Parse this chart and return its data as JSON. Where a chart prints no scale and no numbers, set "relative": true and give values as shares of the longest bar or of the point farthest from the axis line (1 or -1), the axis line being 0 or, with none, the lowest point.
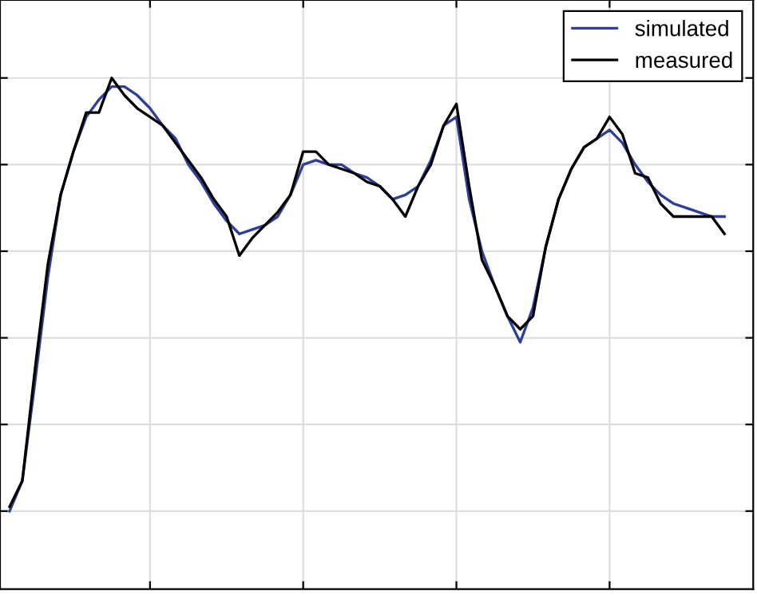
{
  "chart_data": {
    "type": "line",
    "relative": true,
    "grid": true,
    "legend": "top right",
    "marker": "none",
    "line_style": "solid",
    "categories": [
      null,
      null,
      null,
      null,
      null,
      null,
      null,
      null,
      null,
      null,
      null,
      null,
      null,
      null,
      null,
      null,
      null,
      null,
      null,
      null,
      null,
      null,
      null,
      null,
      null,
      null,
      null,
      null,
      null,
      null,
      null,
      null,
      null,
      null,
      null,
      null,
      null,
      null,
      null,
      null,
      null,
      null,
      null,
      null,
      null,
      null,
      null,
      null,
      null,
      null,
      null,
      null,
      null,
      null,
      null,
      null,
      null
    ],
    "series": [
      {
        "name": "simulated",
        "color": "#2e3f9a",
        "values": [
          0.0,
          0.07,
          0.3,
          0.54,
          0.73,
          0.83,
          0.91,
          0.95,
          0.98,
          0.98,
          0.96,
          0.93,
          0.89,
          0.86,
          0.8,
          0.76,
          0.71,
          0.67,
          0.64,
          0.65,
          0.66,
          0.68,
          0.73,
          0.8,
          0.81,
          0.8,
          0.8,
          0.78,
          0.77,
          0.75,
          0.72,
          0.73,
          0.75,
          0.81,
          0.89,
          0.91,
          0.72,
          0.6,
          0.52,
          0.45,
          0.39,
          0.47,
          0.61,
          0.72,
          0.79,
          0.84,
          0.86,
          0.88,
          0.85,
          0.8,
          0.76,
          0.73,
          0.71,
          0.7,
          0.69,
          0.68,
          0.68
        ]
      },
      {
        "name": "measured",
        "color": "#000000",
        "values": [
          0.01,
          0.07,
          0.33,
          0.57,
          0.73,
          0.83,
          0.92,
          0.92,
          1.0,
          0.96,
          0.93,
          0.91,
          0.89,
          0.85,
          0.81,
          0.77,
          0.72,
          0.68,
          0.59,
          0.63,
          0.66,
          0.69,
          0.73,
          0.83,
          0.83,
          0.8,
          0.79,
          0.78,
          0.76,
          0.75,
          0.72,
          0.68,
          0.75,
          0.8,
          0.89,
          0.94,
          0.75,
          0.58,
          0.52,
          0.45,
          0.42,
          0.45,
          0.61,
          0.72,
          0.79,
          0.84,
          0.86,
          0.91,
          0.87,
          0.78,
          0.77,
          0.71,
          0.68,
          0.68,
          0.68,
          0.68,
          0.64
        ]
      }
    ]
  }
}
